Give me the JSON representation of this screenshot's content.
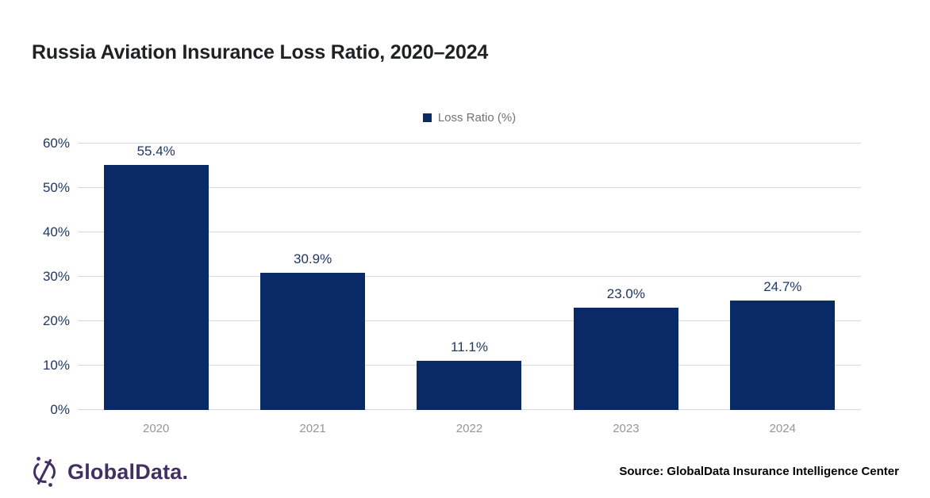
{
  "title": "Russia Aviation Insurance Loss Ratio, 2020–2024",
  "legend": {
    "label": "Loss Ratio (%)"
  },
  "chart_data": {
    "type": "bar",
    "title": "Russia Aviation Insurance Loss Ratio, 2020–2024",
    "categories": [
      "2020",
      "2021",
      "2022",
      "2023",
      "2024"
    ],
    "values": [
      55.4,
      30.9,
      11.1,
      23.0,
      24.7
    ],
    "data_labels": [
      "55.4%",
      "30.9%",
      "11.1%",
      "23.0%",
      "24.7%"
    ],
    "series_name": "Loss Ratio (%)",
    "xlabel": "",
    "ylabel": "Loss Ratio (%)",
    "ylim": [
      0,
      60
    ],
    "yticks": [
      "0%",
      "10%",
      "20%",
      "30%",
      "40%",
      "50%",
      "60%"
    ],
    "grid": true,
    "legend_position": "top-center",
    "bar_color": "#0a2a66"
  },
  "footer": {
    "logo_text": "GlobalData.",
    "source": "Source: GlobalData Insurance Intelligence Center"
  },
  "colors": {
    "bar": "#0a2a66",
    "navy_text": "#1f3864",
    "gridline": "#d9d9d9",
    "x_label": "#969696",
    "legend_text": "#737373",
    "title": "#1e2125",
    "logo_purple": "#433063",
    "source_text": "#000000"
  }
}
